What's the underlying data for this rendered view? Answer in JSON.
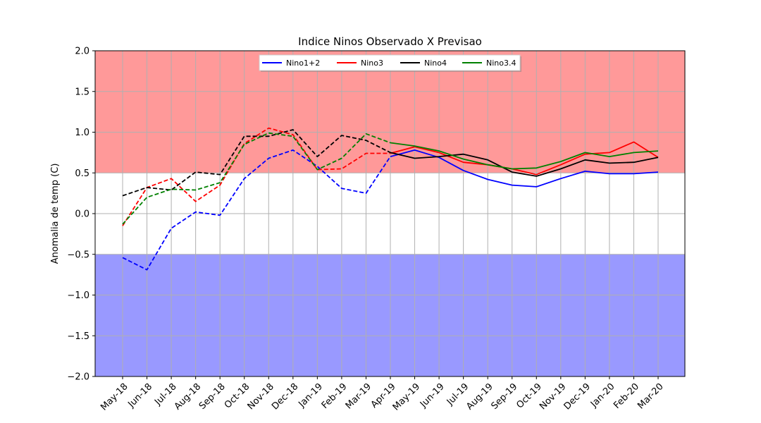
{
  "chart_data": {
    "type": "line",
    "title": "Indice Ninos Observado X Previsao",
    "xlabel": "",
    "ylabel": "Anomalia de temp (C)",
    "ylim": [
      -2.0,
      2.0
    ],
    "yticks": [
      "2.0",
      "1.5",
      "1.0",
      "0.5",
      "0.0",
      "−0.5",
      "−1.0",
      "−1.5",
      "−2.0"
    ],
    "ytick_values": [
      2.0,
      1.5,
      1.0,
      0.5,
      0.0,
      -0.5,
      -1.0,
      -1.5,
      -2.0
    ],
    "categories": [
      "May-18",
      "Jun-18",
      "Jul-18",
      "Aug-18",
      "Sep-18",
      "Oct-18",
      "Nov-18",
      "Dec-18",
      "Jan-19",
      "Feb-19",
      "Mar-19",
      "Apr-19",
      "May-19",
      "Jun-19",
      "Jul-19",
      "Aug-19",
      "Sep-19",
      "Oct-19",
      "Nov-19",
      "Dec-19",
      "Jan-20",
      "Feb-20",
      "Mar-20"
    ],
    "grid": true,
    "legend_position": "top-center",
    "observed_end_index": 11,
    "bands": [
      {
        "from": 0.5,
        "to": 2.0,
        "color": "#ff9999"
      },
      {
        "from": -2.0,
        "to": -0.5,
        "color": "#9999ff"
      }
    ],
    "series": [
      {
        "name": "Nino1+2",
        "color": "#0000ff",
        "values": [
          -0.54,
          -0.69,
          -0.18,
          0.02,
          -0.02,
          0.43,
          0.68,
          0.78,
          0.58,
          0.31,
          0.25,
          0.7,
          0.78,
          0.69,
          0.53,
          0.42,
          0.35,
          0.33,
          0.43,
          0.52,
          0.49,
          0.49,
          0.51
        ]
      },
      {
        "name": "Nino3",
        "color": "#ff0000",
        "values": [
          -0.15,
          0.32,
          0.43,
          0.15,
          0.35,
          0.86,
          1.05,
          0.97,
          0.54,
          0.55,
          0.74,
          0.74,
          0.82,
          0.75,
          0.63,
          0.6,
          0.55,
          0.48,
          0.6,
          0.73,
          0.75,
          0.88,
          0.69
        ]
      },
      {
        "name": "Nino4",
        "color": "#000000",
        "values": [
          0.22,
          0.32,
          0.29,
          0.51,
          0.48,
          0.95,
          0.95,
          1.03,
          0.7,
          0.96,
          0.9,
          0.75,
          0.68,
          0.7,
          0.73,
          0.66,
          0.51,
          0.46,
          0.55,
          0.66,
          0.62,
          0.63,
          0.69
        ]
      },
      {
        "name": "Nino3.4",
        "color": "#008000",
        "values": [
          -0.13,
          0.2,
          0.3,
          0.29,
          0.38,
          0.85,
          0.99,
          0.95,
          0.54,
          0.68,
          0.98,
          0.87,
          0.83,
          0.77,
          0.67,
          0.6,
          0.55,
          0.56,
          0.64,
          0.75,
          0.7,
          0.75,
          0.77
        ]
      }
    ]
  }
}
